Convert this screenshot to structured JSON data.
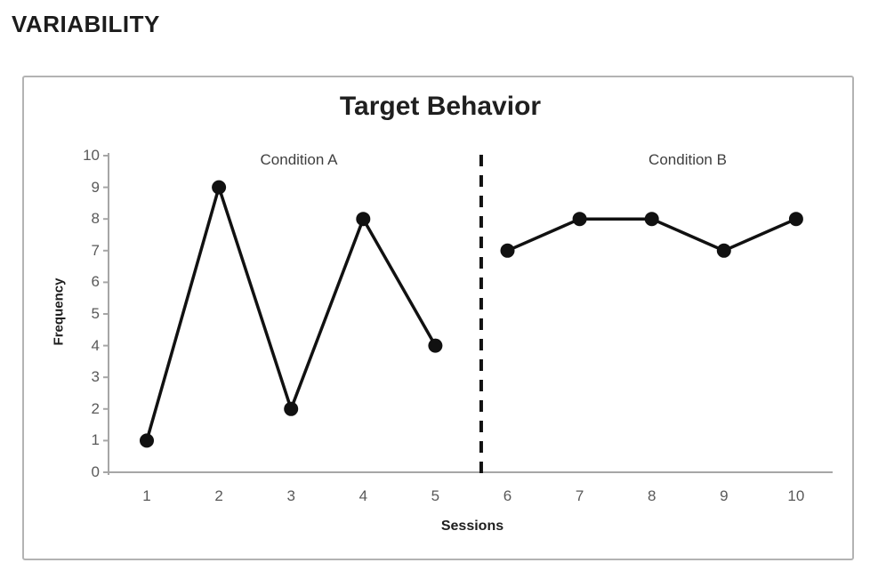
{
  "heading": "VARIABILITY",
  "chart_data": {
    "type": "line",
    "title": "Target Behavior",
    "xlabel": "Sessions",
    "ylabel": "Frequency",
    "ylim": [
      0,
      10
    ],
    "y_ticks": [
      0,
      1,
      2,
      3,
      4,
      5,
      6,
      7,
      8,
      9,
      10
    ],
    "x_ticks": [
      1,
      2,
      3,
      4,
      5,
      6,
      7,
      8,
      9,
      10
    ],
    "series": [
      {
        "name": "Condition A",
        "x": [
          1,
          2,
          3,
          4,
          5
        ],
        "values": [
          1,
          9,
          2,
          8,
          4
        ]
      },
      {
        "name": "Condition B",
        "x": [
          6,
          7,
          8,
          9,
          10
        ],
        "values": [
          7,
          8,
          8,
          7,
          8
        ]
      }
    ],
    "phase_change_line_between": [
      5,
      6
    ],
    "annotations": [
      {
        "text": "Condition A"
      },
      {
        "text": "Condition B"
      }
    ],
    "grid": false,
    "legend": false,
    "colors": {
      "series": "#111111",
      "phase_line": "#111111",
      "axis": "#a6a6a6",
      "tick_text": "#595959",
      "condition_text": "#3f3f3f",
      "title_text": "#1f1f1f",
      "panel_border": "#b3b3b3"
    }
  }
}
